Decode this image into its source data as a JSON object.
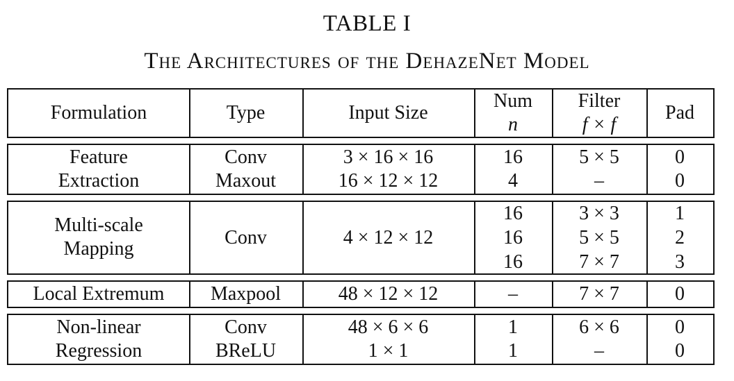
{
  "caption": {
    "number": "TABLE I",
    "title": "The Architectures of the DehazeNet Model"
  },
  "header": {
    "formulation": "Formulation",
    "type": "Type",
    "input_size": "Input Size",
    "num_line1": "Num",
    "num_line2": "n",
    "filter_line1": "Filter",
    "filter_line2": "f × f",
    "pad": "Pad"
  },
  "groups": [
    {
      "formulation": [
        "Feature",
        "Extraction"
      ],
      "rows": [
        {
          "type": "Conv",
          "input": "3 × 16 × 16",
          "num": "16",
          "filter": "5 × 5",
          "pad": "0"
        },
        {
          "type": "Maxout",
          "input": "16 × 12 × 12",
          "num": "4",
          "filter": "–",
          "pad": "0"
        }
      ]
    },
    {
      "formulation": [
        "Multi-scale",
        "Mapping"
      ],
      "type": "Conv",
      "input": "4 × 12 × 12",
      "rows": [
        {
          "num": "16",
          "filter": "3 × 3",
          "pad": "1"
        },
        {
          "num": "16",
          "filter": "5 × 5",
          "pad": "2"
        },
        {
          "num": "16",
          "filter": "7 × 7",
          "pad": "3"
        }
      ]
    },
    {
      "formulation": [
        "Local Extremum"
      ],
      "rows": [
        {
          "type": "Maxpool",
          "input": "48 × 12 × 12",
          "num": "–",
          "filter": "7 × 7",
          "pad": "0"
        }
      ]
    },
    {
      "formulation": [
        "Non-linear",
        "Regression"
      ],
      "rows": [
        {
          "type": "Conv",
          "input": "48 × 6 × 6",
          "num": "1",
          "filter": "6 × 6",
          "pad": "0"
        },
        {
          "type": "BReLU",
          "input": "1 × 1",
          "num": "1",
          "filter": "–",
          "pad": "0"
        }
      ]
    }
  ]
}
